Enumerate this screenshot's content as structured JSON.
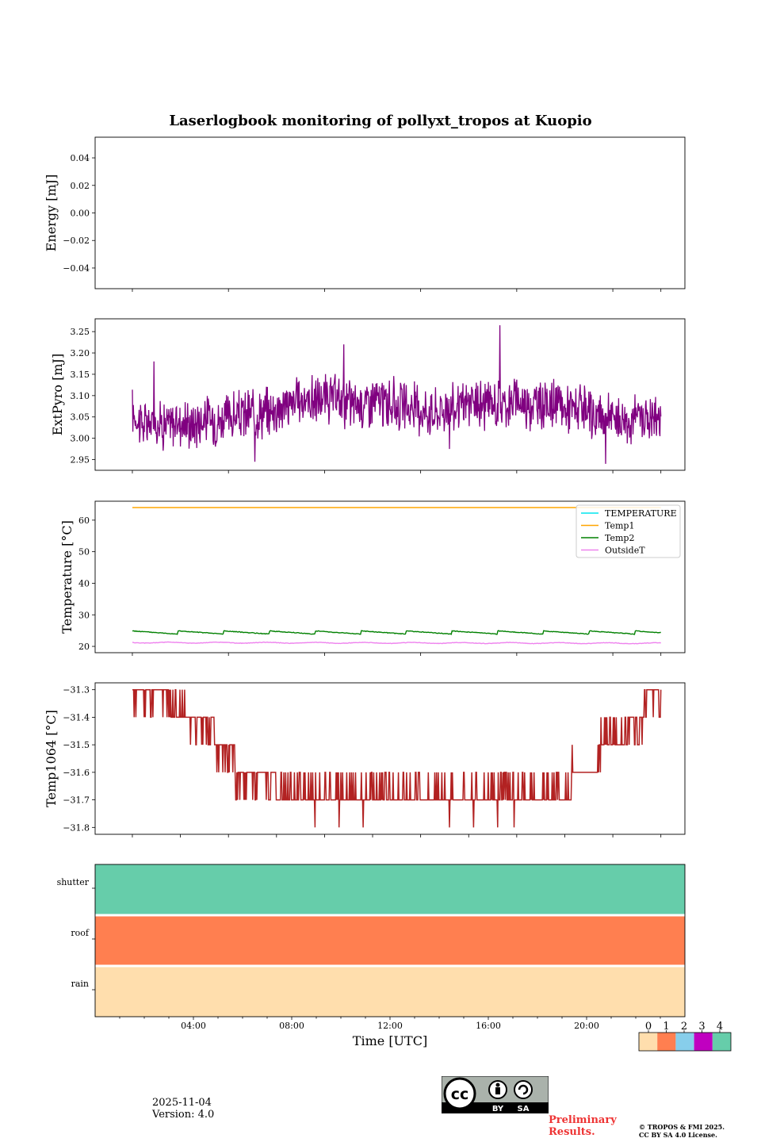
{
  "colors": {
    "extpyro": "#800080",
    "temperature": "#00e5ee",
    "temp1": "#ffa500",
    "temp2": "#008000",
    "outsidet": "#ee82ee",
    "temp1064": "#b22222",
    "flag_0": "#ffdead",
    "flag_1": "#ff7f50",
    "flag_2": "#87ceeb",
    "flag_3": "#c000c0",
    "flag_4": "#66cdaa"
  },
  "chart_data": [
    {
      "type": "line",
      "id": "energy",
      "title": "Laserlogbook monitoring of pollyxt_tropos at Kuopio",
      "ylabel": "Energy [mJ]",
      "ylim": [
        -0.055,
        0.055
      ],
      "yticks": [
        0.04,
        0.02,
        0.0,
        -0.02,
        -0.04
      ],
      "ytick_labels": [
        "0.04",
        "0.02",
        "0.00",
        "−0.02",
        "−0.04"
      ],
      "series": []
    },
    {
      "type": "line",
      "id": "extpyro",
      "ylabel": "ExtPyro [mJ]",
      "ylim": [
        2.925,
        3.28
      ],
      "yticks": [
        3.25,
        3.2,
        3.15,
        3.1,
        3.05,
        3.0,
        2.95
      ],
      "ytick_labels": [
        "3.25",
        "3.20",
        "3.15",
        "3.10",
        "3.05",
        "3.00",
        "2.95"
      ],
      "series": [
        {
          "name": "ExtPyro",
          "x_hours": [
            1.0,
            1.5,
            2.0,
            2.5,
            3.0,
            3.5,
            4.0,
            4.5,
            5.0,
            5.5,
            6.0,
            6.5,
            7.0,
            7.5,
            8.0,
            8.5,
            9.0,
            9.5,
            10.0,
            10.5,
            11.0,
            11.5,
            12.0,
            12.5,
            13.0,
            13.5,
            14.0,
            14.5,
            15.0,
            15.5,
            16.0,
            16.5,
            17.0,
            17.5,
            18.0,
            18.5,
            19.0,
            19.5,
            20.0,
            20.5,
            21.0,
            21.5,
            22.0,
            22.5,
            23.0
          ],
          "values": [
            3.06,
            3.03,
            3.04,
            3.03,
            3.04,
            3.03,
            3.05,
            3.04,
            3.05,
            3.05,
            3.06,
            3.06,
            3.07,
            3.08,
            3.09,
            3.09,
            3.09,
            3.09,
            3.08,
            3.08,
            3.09,
            3.08,
            3.08,
            3.07,
            3.07,
            3.06,
            3.07,
            3.07,
            3.08,
            3.08,
            3.08,
            3.08,
            3.09,
            3.08,
            3.08,
            3.08,
            3.07,
            3.07,
            3.05,
            3.05,
            3.05,
            3.04,
            3.05,
            3.05,
            3.05
          ],
          "noise_amplitude": 0.045,
          "spikes": [
            {
              "x_hours": 1.9,
              "value": 3.18
            },
            {
              "x_hours": 6.1,
              "value": 2.945
            },
            {
              "x_hours": 9.8,
              "value": 3.22
            },
            {
              "x_hours": 16.3,
              "value": 3.265
            },
            {
              "x_hours": 20.7,
              "value": 2.94
            },
            {
              "x_hours": 14.2,
              "value": 2.975
            }
          ]
        }
      ]
    },
    {
      "type": "line",
      "id": "temperature",
      "ylabel": "Temperature [°C]",
      "ylim": [
        18,
        66
      ],
      "yticks": [
        60,
        50,
        40,
        30,
        20
      ],
      "ytick_labels": [
        "60",
        "50",
        "40",
        "30",
        "20"
      ],
      "legend": [
        "TEMPERATURE",
        "Temp1",
        "Temp2",
        "OutsideT"
      ],
      "legend_position": "top-right",
      "series": [
        {
          "name": "TEMPERATURE",
          "values": []
        },
        {
          "name": "Temp1",
          "x_hours": [
            1.0,
            23.0
          ],
          "values": [
            64.0,
            64.0
          ]
        },
        {
          "name": "Temp2",
          "x_hours": [
            1.0,
            23.0
          ],
          "values": [
            24.3,
            24.3
          ],
          "sawtooth_period_hours": 1.9,
          "sawtooth_amplitude": 1.0
        },
        {
          "name": "OutsideT",
          "x_hours": [
            1.0,
            23.0
          ],
          "values": [
            21.2,
            21.0
          ],
          "sawtooth_amplitude": 0.3
        }
      ]
    },
    {
      "type": "line",
      "id": "temp1064",
      "ylabel": "Temp1064 [°C]",
      "ylim": [
        -31.825,
        -31.275
      ],
      "yticks": [
        -31.3,
        -31.4,
        -31.5,
        -31.6,
        -31.7,
        -31.8
      ],
      "ytick_labels": [
        "−31.3",
        "−31.4",
        "−31.5",
        "−31.6",
        "−31.7",
        "−31.8"
      ],
      "series": [
        {
          "name": "Temp1064",
          "steps": [
            {
              "from": 1.0,
              "to": 2.5,
              "level": -31.3,
              "alt": -31.4
            },
            {
              "from": 2.5,
              "to": 3.2,
              "level": -31.4,
              "alt": -31.3
            },
            {
              "from": 3.2,
              "to": 4.4,
              "level": -31.4,
              "alt": -31.5
            },
            {
              "from": 4.4,
              "to": 5.3,
              "level": -31.5,
              "alt": -31.6
            },
            {
              "from": 5.3,
              "to": 7.0,
              "level": -31.6,
              "alt": -31.7
            },
            {
              "from": 7.0,
              "to": 17.4,
              "level": -31.7,
              "alt": -31.6
            },
            {
              "from": 17.4,
              "to": 19.3,
              "level": -31.7,
              "alt": -31.6
            },
            {
              "from": 19.3,
              "to": 20.5,
              "level": -31.6,
              "alt": -31.5
            },
            {
              "from": 20.5,
              "to": 21.5,
              "level": -31.5,
              "alt": -31.4
            },
            {
              "from": 21.5,
              "to": 22.3,
              "level": -31.4,
              "alt": -31.5
            },
            {
              "from": 22.3,
              "to": 23.0,
              "level": -31.3,
              "alt": -31.4
            }
          ],
          "dips": [
            {
              "x_hours": 8.6,
              "value": -31.8
            },
            {
              "x_hours": 9.6,
              "value": -31.8
            },
            {
              "x_hours": 10.6,
              "value": -31.8
            },
            {
              "x_hours": 14.2,
              "value": -31.8
            },
            {
              "x_hours": 15.2,
              "value": -31.8
            },
            {
              "x_hours": 16.2,
              "value": -31.8
            },
            {
              "x_hours": 16.9,
              "value": -31.8
            }
          ]
        }
      ]
    },
    {
      "type": "heatmap",
      "id": "flags",
      "categories": [
        "shutter",
        "roof",
        "rain"
      ],
      "values": [
        4,
        1,
        0
      ],
      "xlabel": "Time [UTC]",
      "xlim_hours": [
        0,
        24
      ],
      "xticks_hours": [
        4,
        8,
        12,
        16,
        20
      ],
      "xtick_labels": [
        "04:00",
        "08:00",
        "12:00",
        "16:00",
        "20:00"
      ],
      "colorbar": {
        "ticks": [
          "0",
          "1",
          "2",
          "3",
          "4"
        ]
      }
    }
  ],
  "footer": {
    "date": "2025-11-04",
    "version": "Version: 4.0",
    "preliminary": "Preliminary\nResults.",
    "preliminary_line1": "Preliminary",
    "preliminary_line2": "Results.",
    "copyright_line1": "© TROPOS & FMI 2025.",
    "copyright_line2": "CC BY SA 4.0 License.",
    "cc_label_by": "BY",
    "cc_label_sa": "SA",
    "cc_main": "cc"
  }
}
